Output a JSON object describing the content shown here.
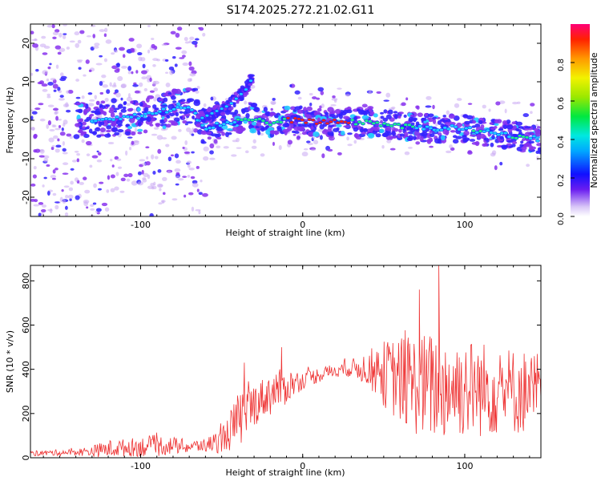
{
  "figure_title": "S174.2025.272.21.02.G11",
  "colors": {
    "snr_line": "#ee3333",
    "ridge_strong": "#ee2222",
    "ridge_mid": "#22ee88",
    "ridge_low": "#22ccff",
    "cloud_blue": "#3322ff",
    "cloud_purple": "#8833ee",
    "cloud_faint": "#c9a8f2",
    "axis": "#000000"
  },
  "chart_data": [
    {
      "type": "heatmap",
      "title": "",
      "xlabel": "Height of straight line (km)",
      "ylabel": "Frequency (Hz)",
      "xlim": [
        -168,
        147
      ],
      "ylim": [
        -25,
        25
      ],
      "xticks": [
        -100,
        0,
        100
      ],
      "xtick_labels": [
        "-100",
        "0",
        "100"
      ],
      "yticks": [
        -20,
        -10,
        0,
        10,
        20
      ],
      "ytick_labels": [
        "-20",
        "-10",
        "0",
        "10",
        "20"
      ],
      "ridge": {
        "x": [
          -130,
          -120,
          -110,
          -100,
          -90,
          -80,
          -70,
          -60,
          -50,
          -40,
          -30,
          -20,
          -10,
          0,
          10,
          20,
          30,
          40,
          50,
          60,
          70,
          80,
          90,
          100,
          110,
          120,
          130,
          140,
          147
        ],
        "frequency": [
          0,
          0.5,
          1,
          1,
          2,
          3,
          4,
          -2,
          -1,
          0,
          0.5,
          -1,
          0,
          0,
          -0.5,
          -0.5,
          -0.5,
          -0.5,
          -1,
          -1.5,
          -2,
          -2,
          -2,
          -2,
          -3,
          -3.5,
          -4,
          -4.5,
          -5
        ]
      },
      "side_ridge": {
        "x": [
          -65,
          -55,
          -45,
          -35,
          -31
        ],
        "frequency": [
          0,
          2,
          4,
          8,
          11
        ]
      },
      "colorbar": {
        "label": "Normalized spectral amplitude",
        "range": [
          0,
          1
        ],
        "ticks": [
          0.0,
          0.2,
          0.4,
          0.6,
          0.8
        ],
        "tick_labels": [
          "0.0",
          "0.2",
          "0.4",
          "0.6",
          "0.8"
        ],
        "colormap": "rainbow"
      }
    },
    {
      "type": "line",
      "title": "",
      "xlabel": "Height of straight line (km)",
      "ylabel": "SNR (10 * v/v)",
      "xlim": [
        -168,
        147
      ],
      "ylim": [
        0,
        870
      ],
      "xticks": [
        -100,
        0,
        100
      ],
      "xtick_labels": [
        "-100",
        "0",
        "100"
      ],
      "yticks": [
        0,
        200,
        400,
        600,
        800
      ],
      "ytick_labels": [
        "0",
        "200",
        "400",
        "600",
        "800"
      ],
      "envelope": {
        "x": [
          -168,
          -140,
          -130,
          -120,
          -110,
          -100,
          -90,
          -80,
          -70,
          -60,
          -50,
          -45,
          -40,
          -35,
          -30,
          -25,
          -20,
          -15,
          -10,
          -5,
          0,
          10,
          20,
          30,
          40,
          50,
          60,
          70,
          80,
          90,
          100,
          110,
          120,
          130,
          140,
          147
        ],
        "baseline": [
          20,
          25,
          30,
          40,
          45,
          50,
          55,
          55,
          50,
          55,
          80,
          120,
          160,
          210,
          240,
          270,
          290,
          310,
          320,
          340,
          350,
          375,
          395,
          405,
          405,
          380,
          350,
          330,
          320,
          320,
          320,
          310,
          310,
          300,
          300,
          300
        ],
        "spread": [
          12,
          15,
          25,
          40,
          40,
          45,
          50,
          40,
          30,
          30,
          60,
          90,
          130,
          120,
          100,
          90,
          100,
          90,
          80,
          60,
          40,
          35,
          30,
          40,
          80,
          150,
          200,
          230,
          250,
          240,
          230,
          220,
          210,
          200,
          190,
          180
        ],
        "peaks": [
          {
            "x": -36,
            "value": 430
          },
          {
            "x": -13,
            "value": 500
          },
          {
            "x": 84,
            "value": 870
          },
          {
            "x": 72,
            "value": 760
          }
        ]
      }
    }
  ]
}
